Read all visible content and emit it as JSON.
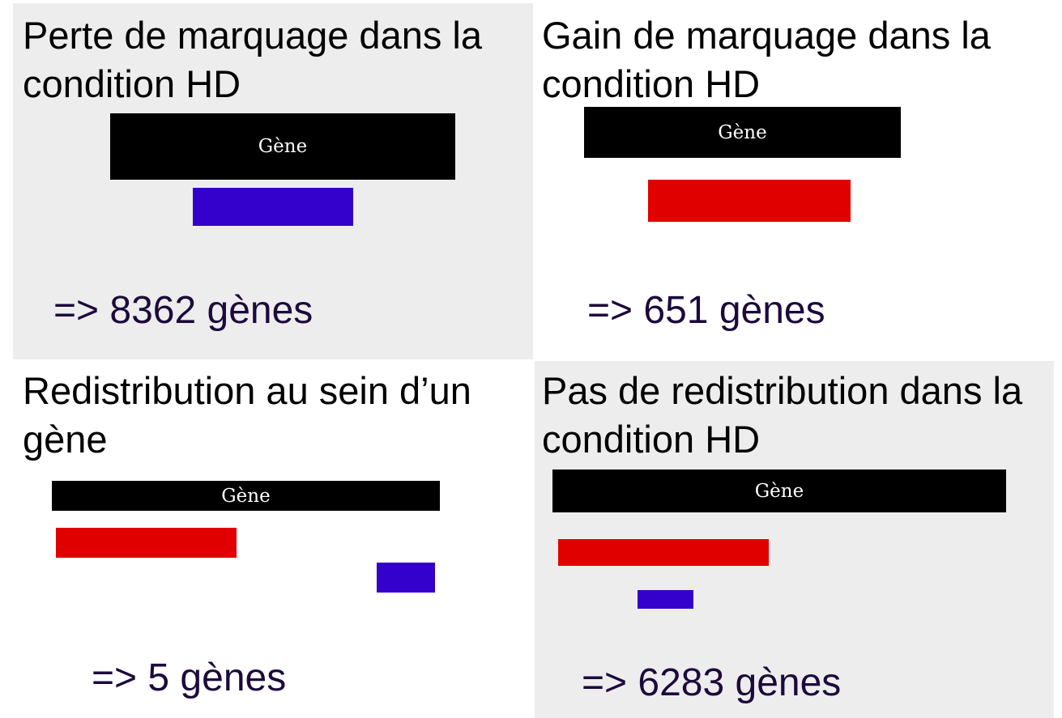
{
  "gene_label": "Gène",
  "colors": {
    "gain": "#e00000",
    "loss": "#3300cc",
    "gene": "#000000",
    "panel_bg": "#ededed"
  },
  "panels": [
    {
      "title": "Perte de marquage dans la condition HD",
      "count": "=> 8362 gènes"
    },
    {
      "title": "Gain de marquage dans la condition HD",
      "count": "=> 651 gènes"
    },
    {
      "title": "Redistribution au sein d’un gène",
      "count": "=> 5 gènes"
    },
    {
      "title": "Pas de redistribution dans la condition HD",
      "count": "=> 6283 gènes"
    }
  ]
}
